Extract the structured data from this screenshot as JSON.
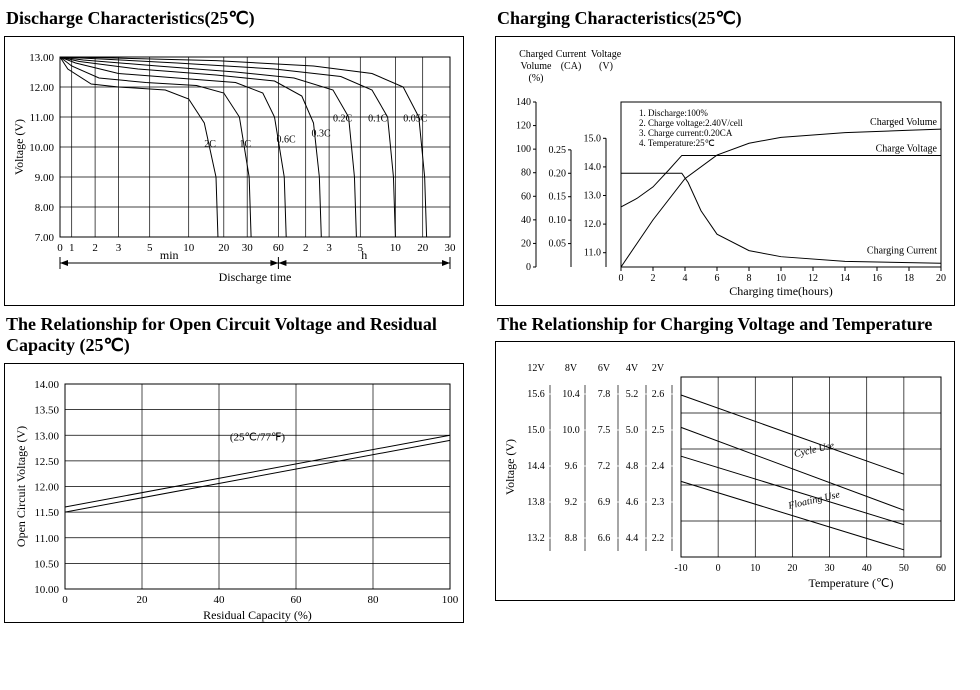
{
  "panels": {
    "discharge": {
      "title": "Discharge Characteristics(25℃)",
      "ylabel": "Voltage (V)",
      "yticks": [
        7.0,
        8.0,
        9.0,
        10.0,
        11.0,
        12.0,
        13.0
      ],
      "xlabel_major": "Discharge time",
      "xlabel_min": "min",
      "xlabel_h": "h",
      "xticks_min": [
        "0",
        "1",
        "2",
        "3",
        "5",
        "10",
        "20",
        "30",
        "60"
      ],
      "xticks_h": [
        "2",
        "3",
        "5",
        "10",
        "20",
        "30"
      ],
      "grid_color": "#000",
      "line_color": "#000",
      "bg": "#ffffff",
      "curves": {
        "2C": [
          [
            0,
            13.0
          ],
          [
            0.02,
            12.6
          ],
          [
            0.08,
            12.1
          ],
          [
            0.15,
            12.0
          ],
          [
            0.27,
            11.9
          ],
          [
            0.33,
            11.6
          ],
          [
            0.37,
            10.8
          ],
          [
            0.4,
            9.0
          ],
          [
            0.405,
            7.0
          ]
        ],
        "1C": [
          [
            0,
            13.0
          ],
          [
            0.03,
            12.7
          ],
          [
            0.1,
            12.3
          ],
          [
            0.22,
            12.15
          ],
          [
            0.35,
            12.05
          ],
          [
            0.42,
            11.8
          ],
          [
            0.46,
            11.0
          ],
          [
            0.485,
            9.0
          ],
          [
            0.49,
            7.0
          ]
        ],
        "0.6C": [
          [
            0,
            13.0
          ],
          [
            0.04,
            12.8
          ],
          [
            0.15,
            12.45
          ],
          [
            0.3,
            12.3
          ],
          [
            0.45,
            12.15
          ],
          [
            0.52,
            11.8
          ],
          [
            0.55,
            11.0
          ],
          [
            0.575,
            9.0
          ],
          [
            0.58,
            7.0
          ]
        ],
        "0.3C": [
          [
            0,
            13.0
          ],
          [
            0.05,
            12.85
          ],
          [
            0.2,
            12.6
          ],
          [
            0.4,
            12.4
          ],
          [
            0.55,
            12.2
          ],
          [
            0.62,
            11.7
          ],
          [
            0.65,
            10.8
          ],
          [
            0.665,
            9.0
          ],
          [
            0.67,
            7.0
          ]
        ],
        "0.2C": [
          [
            0,
            13.0
          ],
          [
            0.06,
            12.9
          ],
          [
            0.25,
            12.7
          ],
          [
            0.45,
            12.5
          ],
          [
            0.6,
            12.3
          ],
          [
            0.7,
            11.9
          ],
          [
            0.74,
            11.0
          ],
          [
            0.755,
            9.0
          ],
          [
            0.76,
            7.0
          ]
        ],
        "0.1C": [
          [
            0,
            13.0
          ],
          [
            0.08,
            12.95
          ],
          [
            0.3,
            12.8
          ],
          [
            0.55,
            12.6
          ],
          [
            0.72,
            12.35
          ],
          [
            0.8,
            11.9
          ],
          [
            0.84,
            11.0
          ],
          [
            0.855,
            9.0
          ],
          [
            0.86,
            7.0
          ]
        ],
        "0.05C": [
          [
            0,
            13.0
          ],
          [
            0.1,
            12.98
          ],
          [
            0.4,
            12.88
          ],
          [
            0.65,
            12.7
          ],
          [
            0.8,
            12.45
          ],
          [
            0.88,
            12.0
          ],
          [
            0.92,
            11.0
          ],
          [
            0.935,
            9.0
          ],
          [
            0.94,
            7.0
          ]
        ]
      },
      "curve_labels": {
        "2C": [
          0.37,
          10.0
        ],
        "1C": [
          0.46,
          10.0
        ],
        "0.6C": [
          0.555,
          10.15
        ],
        "0.3C": [
          0.645,
          10.35
        ],
        "0.2C": [
          0.7,
          10.85
        ],
        "0.1C": [
          0.79,
          10.85
        ],
        "0.05C": [
          0.88,
          10.85
        ]
      }
    },
    "charging": {
      "title": "Charging Characteristics(25℃)",
      "axis_labels": {
        "volume": "Charged\nVolume\n(%)",
        "current": "Current\n(CA)",
        "voltage": "Voltage\n(V)"
      },
      "xlabel": "Charging time(hours)",
      "xticks": [
        0,
        2,
        4,
        6,
        8,
        10,
        12,
        14,
        16,
        18,
        20
      ],
      "volume_ticks": [
        0,
        20,
        40,
        60,
        80,
        100,
        120,
        140
      ],
      "current_ticks": [
        0.05,
        0.1,
        0.15,
        0.2,
        0.25
      ],
      "voltage_ticks": [
        11.0,
        12.0,
        13.0,
        14.0,
        15.0
      ],
      "notes": [
        "1. Discharge:100%",
        "2. Charge voltage:2.40V/cell",
        "3. Charge current:0.20CA",
        "4. Temperature:25℃"
      ],
      "series_names": {
        "volume": "Charged Volume",
        "voltage": "Charge Voltage",
        "current": "Charging Current"
      },
      "line_color": "#000",
      "bg": "#ffffff",
      "volume_series": [
        [
          0,
          0
        ],
        [
          2,
          40
        ],
        [
          4,
          75
        ],
        [
          6,
          95
        ],
        [
          8,
          105
        ],
        [
          10,
          110
        ],
        [
          14,
          114
        ],
        [
          18,
          116
        ],
        [
          20,
          117
        ]
      ],
      "voltage_series": [
        [
          0,
          12.6
        ],
        [
          1,
          12.9
        ],
        [
          2,
          13.3
        ],
        [
          3,
          13.9
        ],
        [
          3.8,
          14.4
        ],
        [
          4,
          14.4
        ],
        [
          6,
          14.4
        ],
        [
          20,
          14.4
        ]
      ],
      "current_series": [
        [
          0,
          0.2
        ],
        [
          3.8,
          0.2
        ],
        [
          4.2,
          0.18
        ],
        [
          5,
          0.12
        ],
        [
          6,
          0.07
        ],
        [
          8,
          0.035
        ],
        [
          10,
          0.022
        ],
        [
          14,
          0.012
        ],
        [
          20,
          0.008
        ]
      ]
    },
    "ocv": {
      "title": "The Relationship for Open Circuit Voltage and Residual Capacity (25℃)",
      "ylabel": "Open Circuit Voltage (V)",
      "xlabel": "Residual Capacity (%)",
      "yticks": [
        10.0,
        10.5,
        11.0,
        11.5,
        12.0,
        12.5,
        13.0,
        13.5,
        14.0
      ],
      "xticks": [
        0,
        20,
        40,
        60,
        80,
        100
      ],
      "annotation": "(25℃/77℉)",
      "line_color": "#000",
      "grid_color": "#000",
      "bg": "#ffffff",
      "upper": [
        [
          0,
          11.6
        ],
        [
          100,
          13.0
        ]
      ],
      "lower": [
        [
          0,
          11.5
        ],
        [
          100,
          12.9
        ]
      ]
    },
    "temp": {
      "title": "The Relationship for Charging Voltage and Temperature",
      "ylabel": "Voltage (V)",
      "xlabel": "Temperature (℃)",
      "xticks": [
        -10,
        0,
        10,
        20,
        30,
        40,
        50,
        60
      ],
      "voltage_headers": [
        "12V",
        "8V",
        "6V",
        "4V",
        "2V"
      ],
      "voltage_rows": [
        [
          "15.6",
          "10.4",
          "7.8",
          "5.2",
          "2.6"
        ],
        [
          "15.0",
          "10.0",
          "7.5",
          "5.0",
          "2.5"
        ],
        [
          "14.4",
          "9.6",
          "7.2",
          "4.8",
          "2.4"
        ],
        [
          "13.8",
          "9.2",
          "6.9",
          "4.6",
          "2.3"
        ],
        [
          "13.2",
          "8.8",
          "6.6",
          "4.4",
          "2.2"
        ]
      ],
      "bands": {
        "cycle": {
          "label": "Cycle Use",
          "upper": [
            [
              -10,
              2.6
            ],
            [
              50,
              2.38
            ]
          ],
          "lower": [
            [
              -10,
              2.51
            ],
            [
              50,
              2.28
            ]
          ]
        },
        "float": {
          "label": "Floating Use",
          "upper": [
            [
              -10,
              2.43
            ],
            [
              50,
              2.24
            ]
          ],
          "lower": [
            [
              -10,
              2.36
            ],
            [
              50,
              2.17
            ]
          ]
        }
      },
      "line_color": "#000",
      "grid_color": "#000",
      "bg": "#ffffff"
    }
  }
}
